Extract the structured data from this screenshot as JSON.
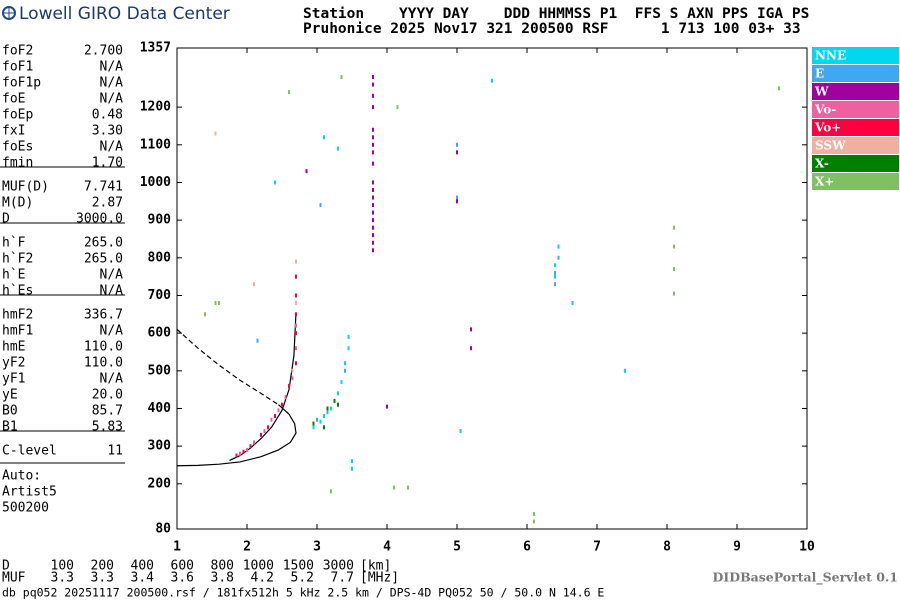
{
  "header": {
    "logo": "Lowell GIRO Data Center",
    "line1": "Station    YYYY DAY    DDD HHMMSS P1  FFS S AXN PPS IGA PS",
    "line2": "Pruhonice 2025 Nov17 321 200500 RSF      1 713 100 03+ 33"
  },
  "parameters": [
    [
      {
        "name": "foF2",
        "value": "2.700"
      },
      {
        "name": "foF1",
        "value": "N/A"
      },
      {
        "name": "foF1p",
        "value": "N/A"
      },
      {
        "name": "foE",
        "value": "N/A"
      },
      {
        "name": "foEp",
        "value": "0.48"
      },
      {
        "name": "fxI",
        "value": "3.30"
      },
      {
        "name": "foEs",
        "value": "N/A"
      },
      {
        "name": "fmin",
        "value": "1.70"
      }
    ],
    [
      {
        "name": "MUF(D)",
        "value": "7.741"
      },
      {
        "name": "M(D)",
        "value": "2.87"
      },
      {
        "name": "D",
        "value": "3000.0"
      }
    ],
    [
      {
        "name": "h`F",
        "value": "265.0"
      },
      {
        "name": "h`F2",
        "value": "265.0"
      },
      {
        "name": "h`E",
        "value": "N/A"
      },
      {
        "name": "h`Es",
        "value": "N/A"
      }
    ],
    [
      {
        "name": "hmF2",
        "value": "336.7"
      },
      {
        "name": "hmF1",
        "value": "N/A"
      },
      {
        "name": "hmE",
        "value": "110.0"
      },
      {
        "name": "yF2",
        "value": "110.0"
      },
      {
        "name": "yF1",
        "value": "N/A"
      },
      {
        "name": "yE",
        "value": "20.0"
      },
      {
        "name": "B0",
        "value": "85.7"
      },
      {
        "name": "B1",
        "value": "5.83"
      }
    ],
    [
      {
        "name": "C-level",
        "value": "11"
      }
    ]
  ],
  "autoscaling": [
    "Auto:",
    "Artist5",
    "500200"
  ],
  "muf_table": {
    "d_label": "D",
    "d_values": [
      "100",
      "200",
      "400",
      "600",
      "800",
      "1000",
      "1500",
      "3000"
    ],
    "d_units": "[km]",
    "muf_label": "MUF",
    "muf_values": [
      "3.3",
      "3.3",
      "3.4",
      "3.6",
      "3.8",
      "4.2",
      "5.2",
      "7.7"
    ],
    "muf_units": "[MHz]"
  },
  "footer": "db pq052 20251117 200500.rsf / 181fx512h 5 kHz 2.5 km / DPS-4D PQ052 50 / 50.0 N 14.6 E",
  "servlet": "DIDBasePortal_Servlet 0.1",
  "chart_data": {
    "type": "scatter",
    "xlim": [
      1,
      10
    ],
    "xticks": [
      1,
      2,
      3,
      4,
      5,
      6,
      7,
      8,
      9,
      10
    ],
    "ylim": [
      80,
      1357
    ],
    "yticks": [
      80,
      200,
      300,
      400,
      500,
      600,
      700,
      800,
      900,
      1000,
      1100,
      1200,
      1357
    ],
    "series": [
      {
        "name": "NNE",
        "color": "#00d8f0",
        "x": [
          2.95,
          3.05,
          3.1,
          3.2,
          3.25,
          3.3,
          3.35,
          3.4,
          3.45,
          3.45,
          3.5,
          3.5,
          6.4,
          6.4,
          6.45,
          6.65,
          5.05,
          2.4,
          3.1,
          3.3,
          7.4,
          5.5
        ],
        "values": [
          350,
          365,
          380,
          400,
          420,
          440,
          470,
          520,
          560,
          590,
          240,
          260,
          750,
          780,
          830,
          680,
          340,
          1000,
          1120,
          1090,
          500,
          1270
        ]
      },
      {
        "name": "E",
        "color": "#40a8f0",
        "x": [
          3.0,
          3.15,
          3.4,
          6.4,
          6.4,
          6.45,
          3.05,
          5.0,
          5.0,
          2.15
        ],
        "values": [
          370,
          390,
          500,
          730,
          760,
          800,
          940,
          1100,
          960,
          580
        ]
      },
      {
        "name": "W",
        "color": "#a000a0",
        "x": [
          3.8,
          3.8,
          3.8,
          3.8,
          3.8,
          3.8,
          3.8,
          3.8,
          3.8,
          3.8,
          3.8,
          3.8,
          3.8,
          3.8,
          3.8,
          3.8,
          3.8,
          3.8,
          3.8,
          5.0,
          5.0,
          5.2,
          5.2,
          4.0,
          2.85
        ],
        "values": [
          820,
          840,
          860,
          880,
          900,
          920,
          940,
          960,
          980,
          1000,
          1050,
          1080,
          1100,
          1120,
          1140,
          1200,
          1230,
          1260,
          1280,
          1080,
          950,
          610,
          560,
          405,
          1030
        ]
      },
      {
        "name": "Vo-",
        "color": "#f060a0",
        "x": [
          1.9,
          2.0,
          2.1,
          2.25,
          2.35,
          2.45,
          2.55,
          2.65,
          2.7,
          2.7
        ],
        "values": [
          280,
          290,
          310,
          340,
          370,
          395,
          430,
          480,
          560,
          620
        ]
      },
      {
        "name": "Vo+",
        "color": "#ff0040",
        "x": [
          1.85,
          1.95,
          2.05,
          2.2,
          2.3,
          2.4,
          2.5,
          2.6,
          2.7,
          2.7,
          2.7,
          2.7,
          2.7
        ],
        "values": [
          275,
          285,
          300,
          330,
          350,
          380,
          410,
          460,
          520,
          600,
          650,
          700,
          750
        ]
      },
      {
        "name": "SSW",
        "color": "#f0b0a0",
        "x": [
          2.7,
          2.7,
          2.65,
          2.1,
          1.55
        ],
        "values": [
          680,
          790,
          500,
          730,
          1130
        ]
      },
      {
        "name": "X-",
        "color": "#008000",
        "x": [
          3.15,
          3.25,
          3.3,
          2.95,
          3.1
        ],
        "values": [
          400,
          420,
          410,
          360,
          350
        ]
      },
      {
        "name": "X+",
        "color": "#80c060",
        "x": [
          8.1,
          8.1,
          8.1,
          8.1,
          3.35,
          1.55,
          1.4,
          1.6,
          4.15,
          6.1,
          6.1,
          4.1,
          4.3,
          3.2,
          2.6,
          9.6
        ],
        "values": [
          880,
          830,
          770,
          705,
          1280,
          680,
          650,
          680,
          1200,
          120,
          100,
          190,
          190,
          180,
          1240,
          1250
        ]
      }
    ],
    "curves": [
      {
        "style": "solid",
        "x": [
          1,
          1.3,
          1.6,
          1.9,
          2.2,
          2.45,
          2.62,
          2.7,
          2.68,
          2.6,
          2.45
        ],
        "values": [
          248,
          249,
          252,
          258,
          272,
          290,
          310,
          335,
          360,
          385,
          410
        ]
      },
      {
        "style": "solid",
        "x": [
          1.75,
          1.9,
          2.05,
          2.2,
          2.35,
          2.5,
          2.6,
          2.67,
          2.7
        ],
        "values": [
          262,
          275,
          295,
          320,
          350,
          395,
          450,
          540,
          655
        ]
      },
      {
        "style": "dashed",
        "x": [
          1,
          1.3,
          1.6,
          1.9,
          2.2,
          2.45
        ],
        "values": [
          610,
          560,
          515,
          475,
          440,
          410
        ]
      }
    ]
  }
}
